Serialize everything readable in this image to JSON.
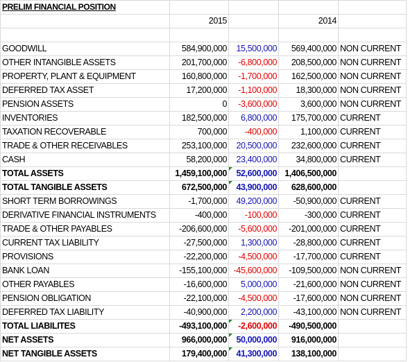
{
  "title": "PRELIM FINANCIAL POSITION",
  "headers": {
    "year_current": "2015",
    "year_prior": "2014"
  },
  "colors": {
    "positive_change": "#1414b4",
    "negative_change": "#e00000",
    "comment_marker": "#1e8c1e",
    "gridline": "#d9d9d9"
  },
  "rows": [
    {
      "label": "GOODWILL",
      "y2015": "584,900,000",
      "change": "15,500,000",
      "y2014": "569,400,000",
      "class": "NON CURRENT",
      "bold": false
    },
    {
      "label": "OTHER INTANGIBLE ASSETS",
      "y2015": "201,700,000",
      "change": "-6,800,000",
      "y2014": "208,500,000",
      "class": "NON CURRENT",
      "bold": false
    },
    {
      "label": "PROPERTY, PLANT & EQUIPMENT",
      "y2015": "160,800,000",
      "change": "-1,700,000",
      "y2014": "162,500,000",
      "class": "NON CURRENT",
      "bold": false
    },
    {
      "label": "DEFERRED TAX ASSET",
      "y2015": "17,200,000",
      "change": "-1,100,000",
      "y2014": "18,300,000",
      "class": "NON CURRENT",
      "bold": false
    },
    {
      "label": "PENSION ASSETS",
      "y2015": "0",
      "change": "-3,600,000",
      "y2014": "3,600,000",
      "class": "NON CURRENT",
      "bold": false
    },
    {
      "label": "INVENTORIES",
      "y2015": "182,500,000",
      "change": "6,800,000",
      "y2014": "175,700,000",
      "class": "CURRENT",
      "bold": false
    },
    {
      "label": "TAXATION RECOVERABLE",
      "y2015": "700,000",
      "change": "-400,000",
      "y2014": "1,100,000",
      "class": "CURRENT",
      "bold": false
    },
    {
      "label": "TRADE & OTHER RECEIVABLES",
      "y2015": "253,100,000",
      "change": "20,500,000",
      "y2014": "232,600,000",
      "class": "CURRENT",
      "bold": false
    },
    {
      "label": "CASH",
      "y2015": "58,200,000",
      "change": "23,400,000",
      "y2014": "34,800,000",
      "class": "CURRENT",
      "bold": false
    },
    {
      "label": "TOTAL ASSETS",
      "y2015": "1,459,100,000",
      "change": "52,600,000",
      "y2014": "1,406,500,000",
      "class": "",
      "bold": true,
      "comment": true
    },
    {
      "label": "TOTAL TANGIBLE ASSETS",
      "y2015": "672,500,000",
      "change": "43,900,000",
      "y2014": "628,600,000",
      "class": "",
      "bold": true,
      "comment": true
    },
    {
      "label": "SHORT TERM BORROWINGS",
      "y2015": "-1,700,000",
      "change": "49,200,000",
      "y2014": "-50,900,000",
      "class": "CURRENT",
      "bold": false
    },
    {
      "label": "DERIVATIVE FINANCIAL INSTRUMENTS",
      "y2015": "-400,000",
      "change": "-100,000",
      "y2014": "-300,000",
      "class": "CURRENT",
      "bold": false
    },
    {
      "label": "TRADE & OTHER PAYABLES",
      "y2015": "-206,600,000",
      "change": "-5,600,000",
      "y2014": "-201,000,000",
      "class": "CURRENT",
      "bold": false
    },
    {
      "label": "CURRENT TAX LIABILITY",
      "y2015": "-27,500,000",
      "change": "1,300,000",
      "y2014": "-28,800,000",
      "class": "CURRENT",
      "bold": false
    },
    {
      "label": "PROVISIONS",
      "y2015": "-22,200,000",
      "change": "-4,500,000",
      "y2014": "-17,700,000",
      "class": "CURRENT",
      "bold": false
    },
    {
      "label": "BANK LOAN",
      "y2015": "-155,100,000",
      "change": "-45,600,000",
      "y2014": "-109,500,000",
      "class": "NON CURRENT",
      "bold": false
    },
    {
      "label": "OTHER PAYABLES",
      "y2015": "-16,600,000",
      "change": "5,000,000",
      "y2014": "-21,600,000",
      "class": "NON CURRENT",
      "bold": false
    },
    {
      "label": "PENSION OBLIGATION",
      "y2015": "-22,100,000",
      "change": "-4,500,000",
      "y2014": "-17,600,000",
      "class": "NON CURRENT",
      "bold": false
    },
    {
      "label": "DEFERRED TAX LIABILITY",
      "y2015": "-40,900,000",
      "change": "2,200,000",
      "y2014": "-43,100,000",
      "class": "NON CURRENT",
      "bold": false
    },
    {
      "label": "TOTAL LIABILITES",
      "y2015": "-493,100,000",
      "change": "-2,600,000",
      "y2014": "-490,500,000",
      "class": "",
      "bold": true,
      "comment": true
    },
    {
      "label": "NET ASSETS",
      "y2015": "966,000,000",
      "change": "50,000,000",
      "y2014": "916,000,000",
      "class": "",
      "bold": true,
      "comment": true
    },
    {
      "label": "NET TANGIBLE ASSETS",
      "y2015": "179,400,000",
      "change": "41,300,000",
      "y2014": "138,100,000",
      "class": "",
      "bold": true,
      "comment": true
    }
  ]
}
